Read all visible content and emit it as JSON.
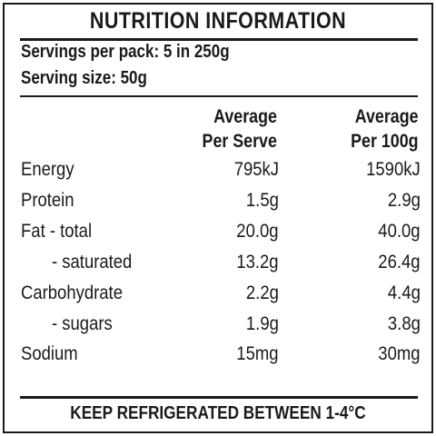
{
  "title": "NUTRITION INFORMATION",
  "servings_per_pack": "Servings per pack: 5 in 250g",
  "serving_size": "Serving size: 50g",
  "columns": {
    "per_serve_line1": "Average",
    "per_serve_line2": "Per Serve",
    "per_100g_line1": "Average",
    "per_100g_line2": "Per 100g"
  },
  "rows": [
    {
      "label": "Energy",
      "per_serve": "795kJ",
      "per_100g": "1590kJ"
    },
    {
      "label": "Protein",
      "per_serve": "1.5g",
      "per_100g": "2.9g"
    },
    {
      "label": "Fat - total",
      "per_serve": "20.0g",
      "per_100g": "40.0g"
    },
    {
      "label": "- saturated",
      "per_serve": "13.2g",
      "per_100g": "26.4g"
    },
    {
      "label": "Carbohydrate",
      "per_serve": "2.2g",
      "per_100g": "4.4g"
    },
    {
      "label": "- sugars",
      "per_serve": "1.9g",
      "per_100g": "3.8g"
    },
    {
      "label": "Sodium",
      "per_serve": "15mg",
      "per_100g": "30mg"
    }
  ],
  "footer": "KEEP REFRIGERATED BETWEEN 1-4°C"
}
